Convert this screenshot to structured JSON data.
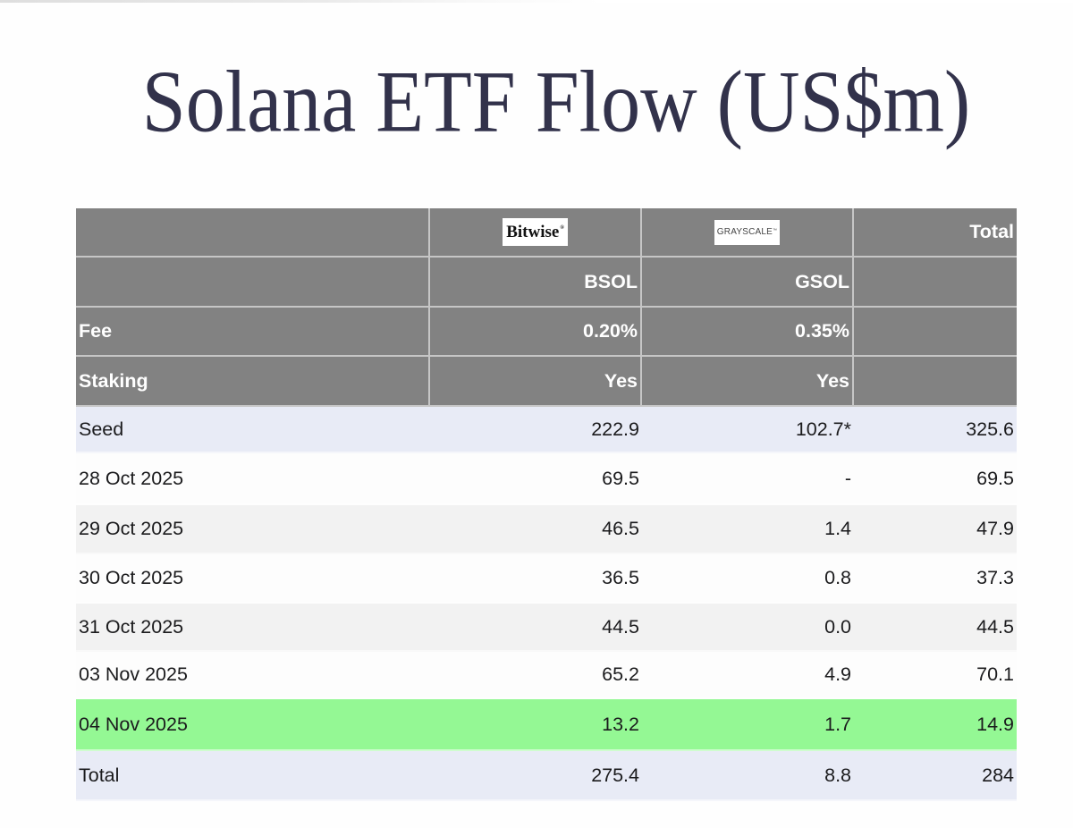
{
  "title": "Solana ETF Flow (US$m)",
  "table": {
    "logo_row": {
      "bitwise": "Bitwise",
      "bitwise_mark": "®",
      "grayscale": "GRAYSCALE",
      "grayscale_mark": "™",
      "total": "Total"
    },
    "header_rows": [
      {
        "label": "",
        "bsol": "BSOL",
        "gsol": "GSOL",
        "total": ""
      },
      {
        "label": "Fee",
        "bsol": "0.20%",
        "gsol": "0.35%",
        "total": ""
      },
      {
        "label": "Staking",
        "bsol": "Yes",
        "gsol": "Yes",
        "total": ""
      }
    ],
    "data_rows": [
      {
        "label": "Seed",
        "bsol": "222.9",
        "gsol": "102.7*",
        "total": "325.6",
        "variant": "lavender"
      },
      {
        "label": "28 Oct 2025",
        "bsol": "69.5",
        "gsol": "-",
        "total": "69.5",
        "variant": "white"
      },
      {
        "label": "29 Oct 2025",
        "bsol": "46.5",
        "gsol": "1.4",
        "total": "47.9",
        "variant": "gray"
      },
      {
        "label": "30 Oct 2025",
        "bsol": "36.5",
        "gsol": "0.8",
        "total": "37.3",
        "variant": "white"
      },
      {
        "label": "31 Oct 2025",
        "bsol": "44.5",
        "gsol": "0.0",
        "total": "44.5",
        "variant": "gray"
      },
      {
        "label": "03 Nov 2025",
        "bsol": "65.2",
        "gsol": "4.9",
        "total": "70.1",
        "variant": "white"
      },
      {
        "label": "04 Nov 2025",
        "bsol": "13.2",
        "gsol": "1.7",
        "total": "14.9",
        "variant": "green"
      },
      {
        "label": "Total",
        "bsol": "275.4",
        "gsol": "8.8",
        "total": "284",
        "variant": "lavender"
      }
    ]
  },
  "colors": {
    "header_bg": "#828282",
    "row_lavender": "#e8ebf6",
    "row_gray": "#f2f2f2",
    "row_white": "#fdfdfd",
    "row_green": "#94f894",
    "title": "#32324b"
  },
  "chart_data": {
    "type": "table",
    "title": "Solana ETF Flow (US$m)",
    "columns": [
      "",
      "BSOL",
      "GSOL",
      "Total"
    ],
    "providers": [
      "Bitwise",
      "Grayscale"
    ],
    "fee": [
      "0.20%",
      "0.35%"
    ],
    "staking": [
      "Yes",
      "Yes"
    ],
    "rows": [
      [
        "Seed",
        222.9,
        "102.7*",
        325.6
      ],
      [
        "28 Oct 2025",
        69.5,
        null,
        69.5
      ],
      [
        "29 Oct 2025",
        46.5,
        1.4,
        47.9
      ],
      [
        "30 Oct 2025",
        36.5,
        0.8,
        37.3
      ],
      [
        "31 Oct 2025",
        44.5,
        0.0,
        44.5
      ],
      [
        "03 Nov 2025",
        65.2,
        4.9,
        70.1
      ],
      [
        "04 Nov 2025",
        13.2,
        1.7,
        14.9
      ],
      [
        "Total",
        275.4,
        8.8,
        284
      ]
    ],
    "highlight_row": "04 Nov 2025"
  }
}
